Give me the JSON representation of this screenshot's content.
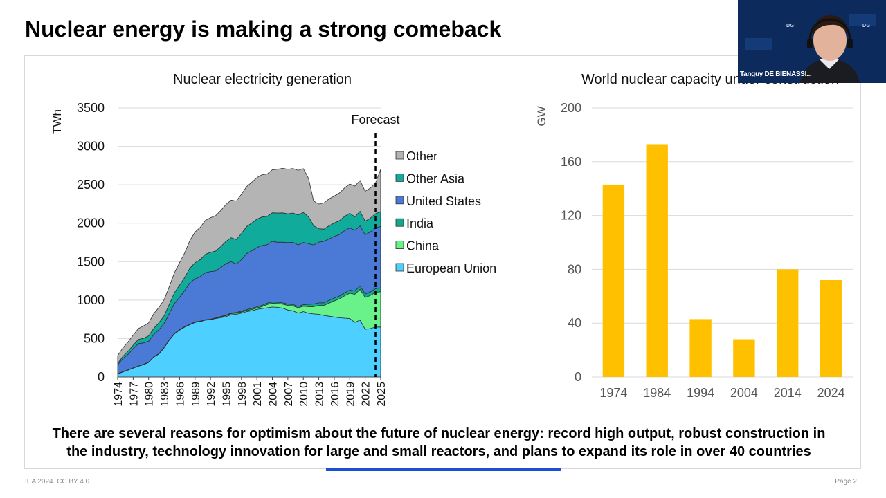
{
  "slide": {
    "title": "Nuclear energy is making a strong comeback",
    "takeaway_line1": "There are several reasons for optimism about the future of nuclear energy: record high output, robust construction in",
    "takeaway_line2": "the industry, technology innovation for large and small reactors, and plans to expand its role in over 40 countries",
    "footer_left": "IEA 2024. CC BY 4.0.",
    "footer_right": "Page 2"
  },
  "video_overlay": {
    "presenter_name": "Tanguy DE BIENASSI...",
    "watermark": "DGI"
  },
  "colors": {
    "European Union": "#4dd0ff",
    "China": "#69f28a",
    "India": "#13a88e",
    "United States": "#4a7ad6",
    "Other Asia": "#10ab9b",
    "Other": "#b4b4b4",
    "bar": "#ffc000",
    "accent_blue": "#1f4fd1"
  },
  "chart_data": [
    {
      "type": "area",
      "stacked": true,
      "title": "Nuclear electricity generation",
      "ylabel": "TWh",
      "ylim": [
        0,
        3500
      ],
      "yticks": [
        0,
        500,
        1000,
        1500,
        2000,
        2500,
        3000,
        3500
      ],
      "x": [
        1974,
        1975,
        1976,
        1977,
        1978,
        1979,
        1980,
        1981,
        1982,
        1983,
        1984,
        1985,
        1986,
        1987,
        1988,
        1989,
        1990,
        1991,
        1992,
        1993,
        1994,
        1995,
        1996,
        1997,
        1998,
        1999,
        2000,
        2001,
        2002,
        2003,
        2004,
        2005,
        2006,
        2007,
        2008,
        2009,
        2010,
        2011,
        2012,
        2013,
        2014,
        2015,
        2016,
        2017,
        2018,
        2019,
        2020,
        2021,
        2022,
        2023,
        2024,
        2025
      ],
      "xticks": [
        1974,
        1977,
        1980,
        1983,
        1986,
        1989,
        1992,
        1995,
        1998,
        2001,
        2004,
        2007,
        2010,
        2013,
        2016,
        2019,
        2022,
        2025
      ],
      "annotation": "Forecast",
      "forecast_x": 2024,
      "legend_position": "right",
      "series": [
        {
          "name": "European Union",
          "values": [
            40,
            65,
            90,
            115,
            140,
            160,
            190,
            260,
            300,
            380,
            480,
            560,
            610,
            650,
            680,
            710,
            720,
            740,
            745,
            760,
            770,
            785,
            810,
            815,
            830,
            850,
            860,
            880,
            890,
            900,
            910,
            905,
            895,
            870,
            860,
            830,
            850,
            830,
            820,
            815,
            800,
            790,
            780,
            770,
            765,
            760,
            710,
            740,
            620,
            630,
            650,
            650
          ]
        },
        {
          "name": "China",
          "values": [
            0,
            0,
            0,
            0,
            0,
            0,
            0,
            0,
            0,
            0,
            0,
            0,
            0,
            0,
            0,
            0,
            0,
            0,
            0,
            2,
            10,
            12,
            13,
            14,
            14,
            14,
            16,
            17,
            25,
            43,
            48,
            50,
            52,
            60,
            65,
            70,
            70,
            85,
            95,
            115,
            130,
            170,
            210,
            245,
            290,
            330,
            365,
            400,
            415,
            430,
            450,
            460
          ]
        },
        {
          "name": "India",
          "values": [
            3,
            4,
            4,
            4,
            4,
            4,
            4,
            4,
            5,
            5,
            6,
            6,
            6,
            6,
            6,
            6,
            6,
            6,
            6,
            6,
            6,
            7,
            8,
            10,
            12,
            12,
            16,
            16,
            16,
            17,
            17,
            17,
            17,
            17,
            17,
            18,
            20,
            30,
            33,
            34,
            34,
            37,
            38,
            38,
            39,
            40,
            43,
            45,
            45,
            47,
            48,
            50
          ]
        },
        {
          "name": "United States",
          "values": [
            115,
            170,
            200,
            250,
            290,
            280,
            270,
            290,
            310,
            310,
            340,
            390,
            420,
            470,
            540,
            560,
            580,
            610,
            620,
            610,
            640,
            670,
            670,
            630,
            670,
            730,
            750,
            770,
            780,
            760,
            790,
            780,
            790,
            800,
            810,
            800,
            810,
            790,
            770,
            790,
            800,
            800,
            800,
            800,
            810,
            810,
            790,
            780,
            770,
            780,
            790,
            800
          ]
        },
        {
          "name": "Other Asia",
          "values": [
            20,
            30,
            40,
            45,
            55,
            60,
            70,
            80,
            90,
            100,
            120,
            140,
            160,
            170,
            190,
            210,
            220,
            240,
            250,
            260,
            270,
            290,
            310,
            320,
            340,
            350,
            360,
            370,
            370,
            370,
            370,
            380,
            380,
            375,
            380,
            390,
            390,
            350,
            250,
            175,
            160,
            170,
            175,
            180,
            185,
            190,
            175,
            190,
            175,
            180,
            185,
            190
          ]
        },
        {
          "name": "Other",
          "values": [
            100,
            110,
            120,
            130,
            140,
            160,
            170,
            190,
            200,
            210,
            230,
            260,
            290,
            320,
            360,
            400,
            420,
            440,
            450,
            460,
            470,
            480,
            490,
            500,
            510,
            520,
            530,
            540,
            550,
            550,
            560,
            570,
            580,
            580,
            580,
            580,
            570,
            500,
            320,
            320,
            340,
            350,
            350,
            360,
            370,
            380,
            400,
            400,
            390,
            390,
            400,
            550
          ]
        }
      ]
    },
    {
      "type": "bar",
      "title": "World nuclear capacity under construction",
      "ylabel": "GW",
      "ylim": [
        0,
        200
      ],
      "yticks": [
        0,
        40,
        80,
        120,
        160,
        200
      ],
      "categories": [
        "1974",
        "1984",
        "1994",
        "2004",
        "2014",
        "2024"
      ],
      "values": [
        143,
        173,
        43,
        28,
        80,
        72
      ],
      "grid": true
    }
  ]
}
